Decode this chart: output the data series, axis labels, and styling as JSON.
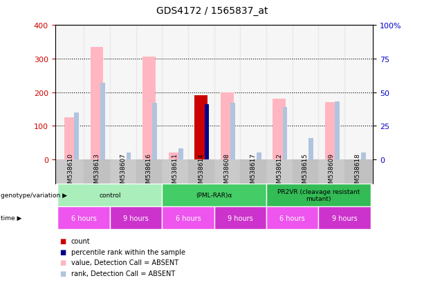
{
  "title": "GDS4172 / 1565837_at",
  "samples": [
    "GSM538610",
    "GSM538613",
    "GSM538607",
    "GSM538616",
    "GSM538611",
    "GSM538614",
    "GSM538608",
    "GSM538617",
    "GSM538612",
    "GSM538615",
    "GSM538609",
    "GSM538618"
  ],
  "value_absent": [
    125,
    335,
    0,
    305,
    20,
    0,
    200,
    0,
    180,
    0,
    170,
    0
  ],
  "rank_absent_pct": [
    35,
    57,
    5,
    42,
    8,
    0,
    42,
    5,
    39,
    16,
    43,
    5
  ],
  "count_present": [
    0,
    0,
    0,
    0,
    0,
    190,
    0,
    0,
    0,
    0,
    0,
    0
  ],
  "rank_present_pct": [
    0,
    0,
    0,
    0,
    0,
    41,
    0,
    0,
    0,
    0,
    0,
    0
  ],
  "ylim_left": [
    0,
    400
  ],
  "ylim_right": [
    0,
    100
  ],
  "yticks_left": [
    0,
    100,
    200,
    300,
    400
  ],
  "yticks_right": [
    0,
    25,
    50,
    75,
    100
  ],
  "yticklabels_right": [
    "0",
    "25",
    "50",
    "75",
    "100%"
  ],
  "color_value_absent": "#FFB6C1",
  "color_rank_absent": "#B0C4DE",
  "color_count": "#CC0000",
  "color_rank_present": "#00008B",
  "left_axis_color": "#CC0000",
  "right_axis_color": "#0000CC",
  "genotype_groups": [
    {
      "label": "control",
      "start": 0,
      "end": 4,
      "color": "#AAEEBB"
    },
    {
      "label": "(PML-RAR)α",
      "start": 4,
      "end": 8,
      "color": "#44CC66"
    },
    {
      "label": "PR2VR (cleavage resistant\nmutant)",
      "start": 8,
      "end": 12,
      "color": "#33BB55"
    }
  ],
  "time_groups": [
    {
      "label": "6 hours",
      "start": 0,
      "end": 2,
      "color": "#EE55EE"
    },
    {
      "label": "9 hours",
      "start": 2,
      "end": 4,
      "color": "#CC33CC"
    },
    {
      "label": "6 hours",
      "start": 4,
      "end": 6,
      "color": "#EE55EE"
    },
    {
      "label": "9 hours",
      "start": 6,
      "end": 8,
      "color": "#CC33CC"
    },
    {
      "label": "6 hours",
      "start": 8,
      "end": 10,
      "color": "#EE55EE"
    },
    {
      "label": "9 hours",
      "start": 10,
      "end": 12,
      "color": "#CC33CC"
    }
  ]
}
